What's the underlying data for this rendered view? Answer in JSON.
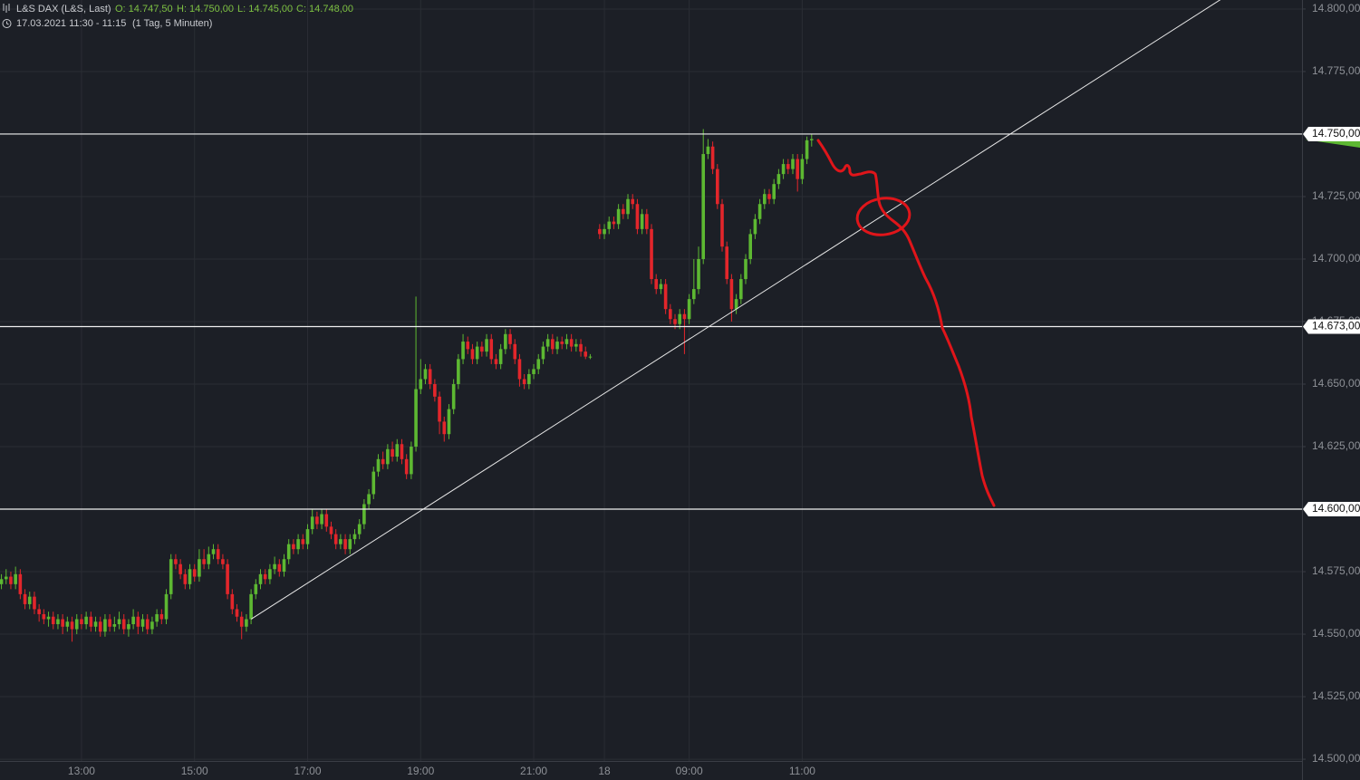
{
  "header": {
    "symbol": "L&S DAX (L&S, Last)",
    "ohlc": [
      "O: 14.747,50",
      "H: 14.750,00",
      "L: 14.745,00",
      "C: 14.748,00"
    ],
    "period": "17.03.2021 11:30 - 11:15",
    "interval": "(1 Tag, 5 Minuten)"
  },
  "chart_data": {
    "type": "candlestick",
    "up_color": "#5db832",
    "down_color": "#e3262b",
    "grid": true,
    "xlim": [
      -0.3,
      276.1
    ],
    "ylim": [
      14499.3,
      14803.6
    ],
    "xticks": [
      {
        "value": 17,
        "label": "13:00"
      },
      {
        "value": 41,
        "label": "15:00"
      },
      {
        "value": 65,
        "label": "17:00"
      },
      {
        "value": 89,
        "label": "19:00"
      },
      {
        "value": 113,
        "label": "21:00"
      },
      {
        "value": 128,
        "label": "18"
      },
      {
        "value": 146,
        "label": "09:00"
      },
      {
        "value": 170,
        "label": "11:00"
      }
    ],
    "yticks": [
      {
        "value": 14500,
        "label": "14.500,00"
      },
      {
        "value": 14525,
        "label": "14.525,00"
      },
      {
        "value": 14550,
        "label": "14.550,00"
      },
      {
        "value": 14575,
        "label": "14.575,00"
      },
      {
        "value": 14600,
        "label": "14.600,00"
      },
      {
        "value": 14625,
        "label": "14.625,00"
      },
      {
        "value": 14650,
        "label": "14.650,00"
      },
      {
        "value": 14675,
        "label": "14.675,00"
      },
      {
        "value": 14700,
        "label": "14.700,00"
      },
      {
        "value": 14725,
        "label": "14.725,00"
      },
      {
        "value": 14750,
        "label": "14.750,00"
      },
      {
        "value": 14775,
        "label": "14.775,00"
      },
      {
        "value": 14800,
        "label": "14.800,00"
      }
    ],
    "levels": [
      {
        "value": 14750,
        "label": "14.750,00"
      },
      {
        "value": 14673,
        "label": "14.673,00"
      },
      {
        "value": 14600,
        "label": "14.600,00"
      }
    ],
    "trendline": {
      "x": [
        53,
        259
      ],
      "y": [
        14556,
        14804
      ]
    },
    "x": [
      0,
      1,
      2,
      3,
      4,
      5,
      6,
      7,
      8,
      9,
      10,
      11,
      12,
      13,
      14,
      15,
      16,
      17,
      18,
      19,
      20,
      21,
      22,
      23,
      24,
      25,
      26,
      27,
      28,
      29,
      30,
      31,
      32,
      33,
      34,
      35,
      36,
      37,
      38,
      39,
      40,
      41,
      42,
      43,
      44,
      45,
      46,
      47,
      48,
      49,
      50,
      51,
      52,
      53,
      54,
      55,
      56,
      57,
      58,
      59,
      60,
      61,
      62,
      63,
      64,
      65,
      66,
      67,
      68,
      69,
      70,
      71,
      72,
      73,
      74,
      75,
      76,
      77,
      78,
      79,
      80,
      81,
      82,
      83,
      84,
      85,
      86,
      87,
      88,
      89,
      90,
      91,
      92,
      93,
      94,
      95,
      96,
      97,
      98,
      99,
      100,
      101,
      102,
      103,
      104,
      105,
      106,
      107,
      108,
      109,
      110,
      111,
      112,
      113,
      114,
      115,
      116,
      117,
      118,
      119,
      120,
      121,
      122,
      123,
      124,
      125,
      127,
      128,
      129,
      130,
      131,
      132,
      133,
      134,
      135,
      136,
      137,
      138,
      139,
      140,
      141,
      142,
      143,
      144,
      145,
      146,
      147,
      148,
      149,
      150,
      151,
      152,
      153,
      154,
      155,
      156,
      157,
      158,
      159,
      160,
      161,
      162,
      163,
      164,
      165,
      166,
      167,
      168,
      169,
      170,
      171,
      172
    ],
    "open": [
      14570,
      14572,
      14573,
      14570,
      14574,
      14566,
      14562,
      14565,
      14560,
      14558,
      14556,
      14557,
      14554,
      14556,
      14553,
      14555,
      14552,
      14556,
      14554,
      14557,
      14553,
      14555,
      14551,
      14556,
      14553,
      14554,
      14556,
      14552,
      14554,
      14557,
      14553,
      14556,
      14552,
      14555,
      14558,
      14556,
      14566,
      14580,
      14578,
      14574,
      14570,
      14576,
      14573,
      14580,
      14578,
      14582,
      14584,
      14580,
      14578,
      14566,
      14560,
      14557,
      14553,
      14556,
      14566,
      14570,
      14574,
      14572,
      14576,
      14578,
      14575,
      14580,
      14586,
      14584,
      14588,
      14586,
      14592,
      14597,
      14594,
      14598,
      14593,
      14590,
      14586,
      14588,
      14584,
      14588,
      14590,
      14594,
      14602,
      14606,
      14615,
      14620,
      14618,
      14624,
      14621,
      14626,
      14620,
      14614,
      14625,
      14648,
      14652,
      14656,
      14650,
      14645,
      14635,
      14630,
      14640,
      14650,
      14660,
      14667,
      14664,
      14660,
      14665,
      14663,
      14668,
      14660,
      14658,
      14664,
      14670,
      14666,
      14660,
      14652,
      14650,
      14654,
      14656,
      14660,
      14665,
      14668,
      14664,
      14667,
      14666,
      14668,
      14665,
      14666,
      14663,
      14661,
      14712,
      14710,
      14712,
      14715,
      14714,
      14720,
      14718,
      14724,
      14722,
      14712,
      14718,
      14712,
      14692,
      14688,
      14690,
      14680,
      14676,
      14674,
      14678,
      14676,
      14684,
      14688,
      14700,
      14742,
      14745,
      14736,
      14722,
      14705,
      14692,
      14680,
      14684,
      14692,
      14700,
      14710,
      14716,
      14722,
      14726,
      14724,
      14730,
      14734,
      14738,
      14736,
      14740,
      14732,
      14740,
      14747.5
    ],
    "high": [
      14574,
      14576,
      14575,
      14577,
      14576,
      14568,
      14567,
      14567,
      14562,
      14560,
      14559,
      14559,
      14558,
      14558,
      14557,
      14557,
      14558,
      14558,
      14559,
      14559,
      14557,
      14557,
      14558,
      14558,
      14557,
      14559,
      14558,
      14556,
      14560,
      14559,
      14558,
      14558,
      14557,
      14560,
      14560,
      14568,
      14582,
      14582,
      14580,
      14576,
      14578,
      14578,
      14584,
      14584,
      14585,
      14586,
      14586,
      14582,
      14580,
      14568,
      14562,
      14559,
      14558,
      14568,
      14572,
      14576,
      14576,
      14578,
      14581,
      14580,
      14582,
      14588,
      14588,
      14590,
      14590,
      14594,
      14600,
      14599,
      14600,
      14600,
      14595,
      14592,
      14590,
      14590,
      14590,
      14592,
      14596,
      14604,
      14608,
      14617,
      14622,
      14623,
      14626,
      14627,
      14628,
      14628,
      14622,
      14627,
      14685,
      14660,
      14658,
      14658,
      14652,
      14647,
      14637,
      14642,
      14652,
      14662,
      14670,
      14669,
      14666,
      14667,
      14667,
      14670,
      14670,
      14662,
      14666,
      14672,
      14672,
      14668,
      14662,
      14654,
      14656,
      14658,
      14662,
      14667,
      14670,
      14670,
      14669,
      14669,
      14670,
      14670,
      14668,
      14668,
      14665,
      14662,
      14714,
      14714,
      14717,
      14717,
      14722,
      14722,
      14726,
      14726,
      14724,
      14720,
      14720,
      14714,
      14694,
      14692,
      14692,
      14682,
      14678,
      14680,
      14680,
      14686,
      14700,
      14705,
      14752,
      14748,
      14747,
      14738,
      14724,
      14707,
      14694,
      14686,
      14694,
      14702,
      14712,
      14718,
      14724,
      14728,
      14728,
      14732,
      14736,
      14740,
      14740,
      14742,
      14742,
      14742,
      14749,
      14750
    ],
    "low": [
      14568,
      14570,
      14568,
      14568,
      14564,
      14560,
      14560,
      14558,
      14555,
      14554,
      14553,
      14552,
      14552,
      14550,
      14551,
      14547,
      14550,
      14552,
      14552,
      14551,
      14551,
      14549,
      14549,
      14551,
      14551,
      14552,
      14550,
      14549,
      14552,
      14550,
      14551,
      14550,
      14550,
      14553,
      14554,
      14554,
      14564,
      14576,
      14572,
      14568,
      14568,
      14571,
      14571,
      14576,
      14576,
      14580,
      14578,
      14576,
      14564,
      14558,
      14555,
      14548,
      14551,
      14554,
      14564,
      14568,
      14570,
      14570,
      14574,
      14573,
      14573,
      14578,
      14582,
      14582,
      14584,
      14584,
      14590,
      14592,
      14592,
      14591,
      14588,
      14584,
      14584,
      14582,
      14582,
      14586,
      14588,
      14592,
      14600,
      14604,
      14613,
      14616,
      14616,
      14619,
      14619,
      14618,
      14612,
      14612,
      14623,
      14646,
      14650,
      14648,
      14643,
      14630,
      14627,
      14628,
      14638,
      14648,
      14658,
      14662,
      14658,
      14658,
      14661,
      14661,
      14658,
      14656,
      14656,
      14662,
      14664,
      14658,
      14649,
      14648,
      14648,
      14652,
      14654,
      14658,
      14663,
      14662,
      14662,
      14664,
      14664,
      14663,
      14663,
      14661,
      14660,
      14660,
      14708,
      14708,
      14710,
      14712,
      14712,
      14716,
      14716,
      14720,
      14710,
      14710,
      14710,
      14690,
      14686,
      14686,
      14678,
      14674,
      14672,
      14672,
      14662,
      14674,
      14682,
      14686,
      14698,
      14740,
      14734,
      14720,
      14703,
      14690,
      14675,
      14678,
      14682,
      14690,
      14698,
      14708,
      14714,
      14720,
      14722,
      14722,
      14728,
      14732,
      14734,
      14734,
      14727,
      14730,
      14738,
      14745
    ],
    "close": [
      14572,
      14573,
      14570,
      14574,
      14566,
      14562,
      14565,
      14560,
      14558,
      14556,
      14557,
      14554,
      14556,
      14553,
      14555,
      14552,
      14556,
      14554,
      14557,
      14553,
      14555,
      14551,
      14556,
      14553,
      14554,
      14556,
      14552,
      14554,
      14557,
      14553,
      14556,
      14552,
      14555,
      14558,
      14556,
      14566,
      14580,
      14578,
      14574,
      14570,
      14576,
      14573,
      14580,
      14578,
      14582,
      14584,
      14580,
      14578,
      14566,
      14560,
      14557,
      14553,
      14556,
      14566,
      14570,
      14574,
      14572,
      14576,
      14578,
      14575,
      14580,
      14586,
      14584,
      14588,
      14586,
      14592,
      14597,
      14594,
      14598,
      14593,
      14590,
      14586,
      14588,
      14584,
      14588,
      14590,
      14594,
      14602,
      14606,
      14615,
      14620,
      14618,
      14624,
      14621,
      14626,
      14620,
      14614,
      14625,
      14648,
      14652,
      14656,
      14650,
      14645,
      14635,
      14630,
      14640,
      14650,
      14660,
      14667,
      14664,
      14660,
      14665,
      14663,
      14668,
      14660,
      14658,
      14664,
      14670,
      14666,
      14660,
      14652,
      14650,
      14654,
      14656,
      14660,
      14665,
      14668,
      14664,
      14667,
      14666,
      14668,
      14665,
      14666,
      14663,
      14661,
      14661,
      14710,
      14712,
      14715,
      14714,
      14720,
      14718,
      14724,
      14722,
      14712,
      14718,
      14712,
      14692,
      14688,
      14690,
      14680,
      14676,
      14674,
      14678,
      14676,
      14684,
      14688,
      14700,
      14742,
      14745,
      14736,
      14722,
      14705,
      14692,
      14680,
      14684,
      14692,
      14700,
      14710,
      14716,
      14722,
      14726,
      14724,
      14730,
      14734,
      14738,
      14736,
      14740,
      14732,
      14740,
      14747.5,
      14748
    ]
  }
}
